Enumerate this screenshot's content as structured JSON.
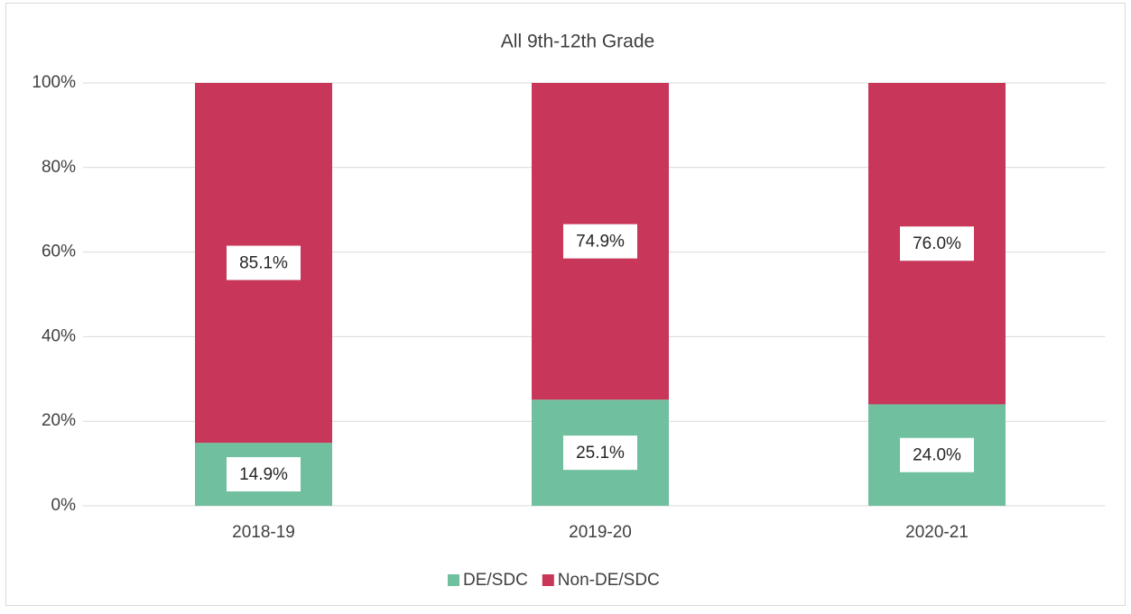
{
  "chart_data": {
    "type": "stacked_bar",
    "title": "All 9th-12th Grade",
    "categories": [
      "2018-19",
      "2019-20",
      "2020-21"
    ],
    "series": [
      {
        "name": "DE/SDC",
        "color": "#70bf9f",
        "values": [
          14.9,
          25.1,
          24.0
        ],
        "value_labels": [
          "14.9%",
          "25.1%",
          "24.0%"
        ]
      },
      {
        "name": "Non-DE/SDC",
        "color": "#c8375a",
        "values": [
          85.1,
          74.9,
          76.0
        ],
        "value_labels": [
          "85.1%",
          "74.9%",
          "76.0%"
        ]
      }
    ],
    "ylim": [
      0,
      100
    ],
    "yticks": [
      {
        "value": 0,
        "label": "0%"
      },
      {
        "value": 20,
        "label": "20%"
      },
      {
        "value": 40,
        "label": "40%"
      },
      {
        "value": 60,
        "label": "60%"
      },
      {
        "value": 80,
        "label": "80%"
      },
      {
        "value": 100,
        "label": "100%"
      }
    ],
    "grid": true,
    "legend": "bottom"
  }
}
